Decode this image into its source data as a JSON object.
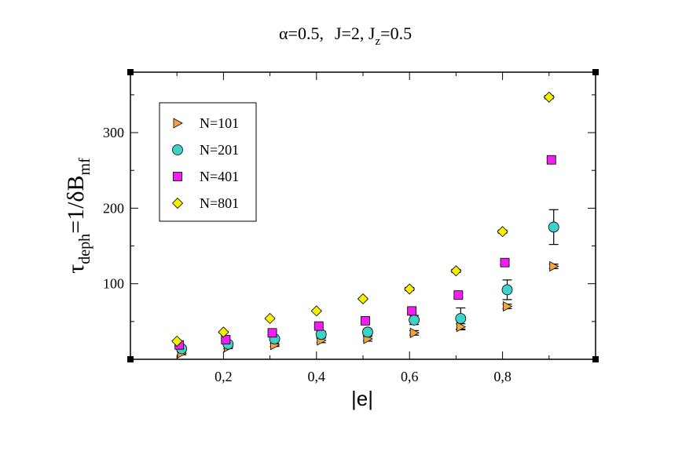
{
  "chart_data": {
    "type": "scatter",
    "title": {
      "alpha_symbol": "α",
      "alpha_value": "=0.5,",
      "j_text": "J=2, J",
      "jz_sub": "z",
      "jz_value": "=0.5"
    },
    "xlabel": "|e|",
    "ylabel": {
      "tau": "τ",
      "tau_sub": "deph",
      "mid": "=1/δB",
      "mid_sub": "mf"
    },
    "xlim": [
      0,
      1
    ],
    "ylim": [
      0,
      380
    ],
    "x_ticks": [
      {
        "value": 0.2,
        "label": "0,2"
      },
      {
        "value": 0.4,
        "label": "0,4"
      },
      {
        "value": 0.6,
        "label": "0,6"
      },
      {
        "value": 0.8,
        "label": "0,8"
      }
    ],
    "y_ticks": [
      {
        "value": 100,
        "label": "100"
      },
      {
        "value": 200,
        "label": "200"
      },
      {
        "value": 300,
        "label": "300"
      }
    ],
    "grid": false,
    "legend_position": "top-left",
    "series": [
      {
        "name": "N=101",
        "marker": "triangle-right",
        "color": "#f5a340",
        "points": [
          {
            "x": 0.11,
            "y": 8,
            "err": 2
          },
          {
            "x": 0.21,
            "y": 16,
            "err": 2
          },
          {
            "x": 0.31,
            "y": 19,
            "err": 2
          },
          {
            "x": 0.41,
            "y": 25,
            "err": 3
          },
          {
            "x": 0.51,
            "y": 27,
            "err": 3
          },
          {
            "x": 0.61,
            "y": 35,
            "err": 3
          },
          {
            "x": 0.71,
            "y": 43,
            "err": 4
          },
          {
            "x": 0.81,
            "y": 70,
            "err": 3
          },
          {
            "x": 0.91,
            "y": 123,
            "err": 3
          }
        ]
      },
      {
        "name": "N=201",
        "marker": "circle",
        "color": "#3dd2c8",
        "points": [
          {
            "x": 0.11,
            "y": 14,
            "err": 3
          },
          {
            "x": 0.21,
            "y": 20,
            "err": 3
          },
          {
            "x": 0.31,
            "y": 27,
            "err": 3
          },
          {
            "x": 0.41,
            "y": 33,
            "err": 4
          },
          {
            "x": 0.51,
            "y": 36,
            "err": 4
          },
          {
            "x": 0.61,
            "y": 52,
            "err": 6
          },
          {
            "x": 0.71,
            "y": 54,
            "err": 14
          },
          {
            "x": 0.81,
            "y": 92,
            "err": 13
          },
          {
            "x": 0.91,
            "y": 175,
            "err": 23
          }
        ]
      },
      {
        "name": "N=401",
        "marker": "square",
        "color": "#f01ef0",
        "points": [
          {
            "x": 0.105,
            "y": 19,
            "err": 2
          },
          {
            "x": 0.205,
            "y": 26,
            "err": 2
          },
          {
            "x": 0.305,
            "y": 35,
            "err": 2
          },
          {
            "x": 0.405,
            "y": 44,
            "err": 2
          },
          {
            "x": 0.505,
            "y": 51,
            "err": 3
          },
          {
            "x": 0.605,
            "y": 64,
            "err": 3
          },
          {
            "x": 0.705,
            "y": 85,
            "err": 3
          },
          {
            "x": 0.805,
            "y": 128,
            "err": 3
          },
          {
            "x": 0.905,
            "y": 264,
            "err": 3
          }
        ]
      },
      {
        "name": "N=801",
        "marker": "diamond",
        "color": "#f5f000",
        "points": [
          {
            "x": 0.1,
            "y": 24,
            "err": 1
          },
          {
            "x": 0.2,
            "y": 36,
            "err": 1
          },
          {
            "x": 0.3,
            "y": 54,
            "err": 1
          },
          {
            "x": 0.4,
            "y": 64,
            "err": 1
          },
          {
            "x": 0.5,
            "y": 80,
            "err": 1
          },
          {
            "x": 0.6,
            "y": 93,
            "err": 2
          },
          {
            "x": 0.7,
            "y": 117,
            "err": 2
          },
          {
            "x": 0.8,
            "y": 169,
            "err": 2
          },
          {
            "x": 0.9,
            "y": 347,
            "err": 2
          }
        ]
      }
    ]
  }
}
